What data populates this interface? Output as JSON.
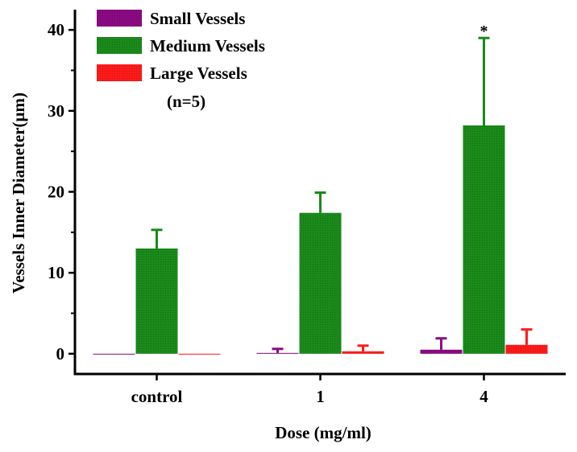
{
  "chart_data": {
    "type": "bar",
    "title": "",
    "xlabel": "Dose (mg/ml)",
    "ylabel": "Vessels Inner Diameter(μm)",
    "ylim": [
      -2.5,
      42.5
    ],
    "yticks": [
      0,
      10,
      20,
      30,
      40
    ],
    "categories": [
      "control",
      "1",
      "4"
    ],
    "legend_note": "(n=5)",
    "legend_position": "top-left",
    "series": [
      {
        "name": "Small Vessels",
        "color": "#8B0A82",
        "values": [
          -0.1,
          0.1,
          0.5
        ],
        "errors": [
          0.0,
          0.5,
          1.4
        ]
      },
      {
        "name": "Medium Vessels",
        "color": "#1A8A1A",
        "values": [
          13.0,
          17.4,
          28.2
        ],
        "errors": [
          2.3,
          2.5,
          10.8
        ]
      },
      {
        "name": "Large Vessels",
        "color": "#FF1A1A",
        "values": [
          -0.1,
          0.3,
          1.1
        ],
        "errors": [
          0.0,
          0.7,
          1.9
        ]
      }
    ],
    "annotations": [
      {
        "category": "4",
        "series": "Medium Vessels",
        "text": "*"
      }
    ]
  }
}
